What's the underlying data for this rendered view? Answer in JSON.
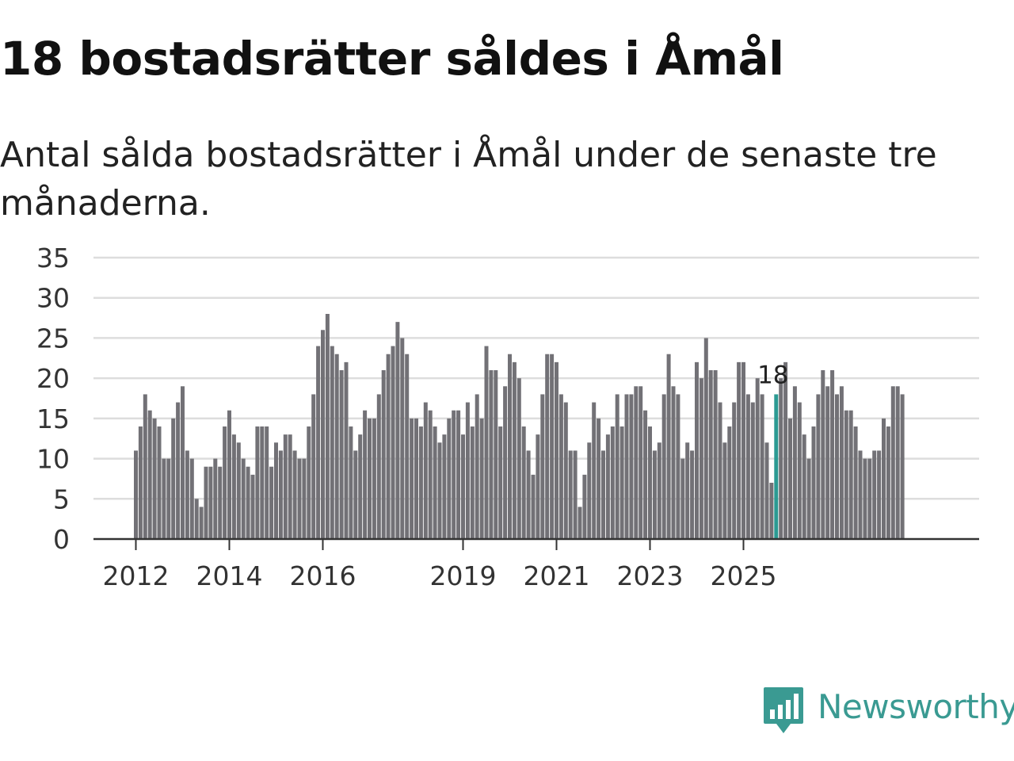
{
  "title": "18 bostadsrätter såldes i Åmål",
  "subtitle": "Antal sålda bostadsrätter i Åmål under de senaste tre månaderna.",
  "logo_text": "Newsworthy",
  "logo_icon": "newsworthy-logo-icon",
  "colors": {
    "bar": "#727176",
    "highlight": "#2b9a92",
    "grid": "#dddddd",
    "axis": "#333333",
    "brand": "#3a9a92"
  },
  "chart_data": {
    "type": "bar",
    "title": "18 bostadsrätter såldes i Åmål",
    "xlabel": "",
    "ylabel": "",
    "ylim": [
      0,
      35
    ],
    "yticks": [
      "0",
      "5",
      "10",
      "15",
      "20",
      "25",
      "30",
      "35"
    ],
    "xtick_labels": [
      {
        "label": "2012",
        "index": 0
      },
      {
        "label": "2014",
        "index": 20
      },
      {
        "label": "2016",
        "index": 40
      },
      {
        "label": "2019",
        "index": 70
      },
      {
        "label": "2021",
        "index": 90
      },
      {
        "label": "2023",
        "index": 110
      },
      {
        "label": "2025",
        "index": 130
      }
    ],
    "highlight_label": "18",
    "highlight_index": 137,
    "values": [
      11,
      14,
      18,
      16,
      15,
      14,
      10,
      10,
      15,
      17,
      19,
      11,
      10,
      5,
      4,
      9,
      9,
      10,
      9,
      14,
      16,
      13,
      12,
      10,
      9,
      8,
      14,
      14,
      14,
      9,
      12,
      11,
      13,
      13,
      11,
      10,
      10,
      14,
      18,
      24,
      26,
      28,
      24,
      23,
      21,
      22,
      14,
      11,
      13,
      16,
      15,
      15,
      18,
      21,
      23,
      24,
      27,
      25,
      23,
      15,
      15,
      14,
      17,
      16,
      14,
      12,
      13,
      15,
      16,
      16,
      13,
      17,
      14,
      18,
      15,
      24,
      21,
      21,
      14,
      19,
      23,
      22,
      20,
      14,
      11,
      8,
      13,
      18,
      23,
      23,
      22,
      18,
      17,
      11,
      11,
      4,
      8,
      12,
      17,
      15,
      11,
      13,
      14,
      18,
      14,
      18,
      18,
      19,
      19,
      16,
      14,
      11,
      12,
      18,
      23,
      19,
      18,
      10,
      12,
      11,
      22,
      20,
      25,
      21,
      21,
      17,
      12,
      14,
      17,
      22,
      22,
      18,
      17,
      20,
      18,
      12,
      7,
      18,
      20,
      22,
      15,
      19,
      17,
      13,
      10,
      14,
      18,
      21,
      19,
      21,
      18,
      19,
      16,
      16,
      14,
      11,
      10,
      10,
      11,
      11,
      15,
      14,
      19,
      19,
      18
    ]
  }
}
